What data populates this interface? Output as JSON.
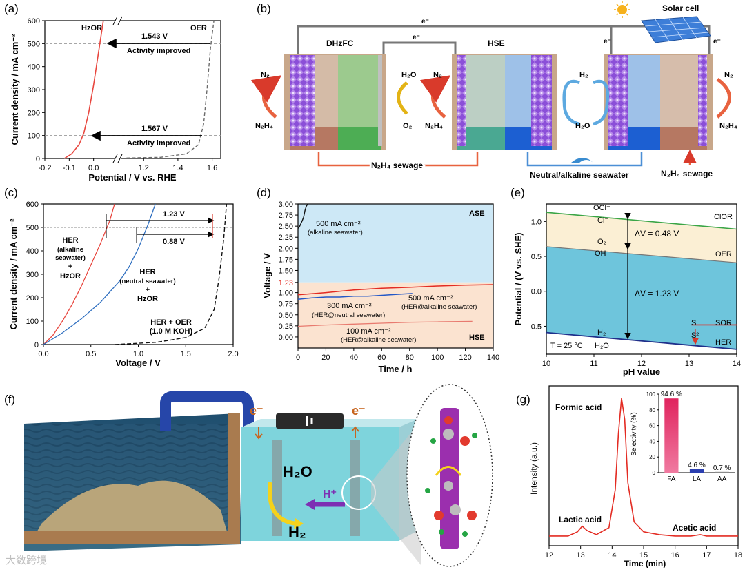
{
  "panel_labels": {
    "a": "(a)",
    "b": "(b)",
    "c": "(c)",
    "d": "(d)",
    "e": "(e)",
    "f": "(f)",
    "g": "(g)"
  },
  "colors": {
    "red": "#e8473f",
    "blue": "#2f6fc0",
    "gray_dash": "#6b6b6b",
    "green": "#3aa546",
    "ase_fill": "#cde8f6",
    "hse_fill": "#fbe3d0",
    "cl_band": "#fbefd4",
    "oer_band": "#6ec5dc",
    "water": "#7ed4dc",
    "molecule_rod": "#9b2fae"
  },
  "chart_data": [
    {
      "id": "a",
      "type": "line",
      "title": "",
      "xlabel": "Potential / V vs. RHE",
      "ylabel": "Current density / mA cm⁻²",
      "xlim_left": [
        -0.2,
        0.1
      ],
      "xlim_right": [
        1.05,
        1.65
      ],
      "ylim": [
        0,
        600
      ],
      "x_ticks": [
        "-0.2",
        "-0.1",
        "0.0",
        "1.2",
        "1.4",
        "1.6"
      ],
      "y_ticks": [
        "0",
        "100",
        "200",
        "300",
        "400",
        "500",
        "600"
      ],
      "series": [
        {
          "name": "HzOR",
          "style": "solid-red",
          "x": [
            -0.12,
            -0.09,
            -0.06,
            -0.04,
            -0.02,
            0.0,
            0.02,
            0.04
          ],
          "y": [
            0,
            20,
            60,
            110,
            200,
            320,
            460,
            600
          ]
        },
        {
          "name": "OER",
          "style": "dashed-gray",
          "x": [
            1.1,
            1.3,
            1.45,
            1.52,
            1.55,
            1.57,
            1.59,
            1.61
          ],
          "y": [
            2,
            5,
            20,
            60,
            150,
            300,
            480,
            600
          ]
        }
      ],
      "reference_lines": [
        100,
        500
      ],
      "annotations": [
        {
          "text": "1.543 V",
          "at": 500
        },
        {
          "text": "Activity improved",
          "at": 500
        },
        {
          "text": "1.567 V",
          "at": 100
        },
        {
          "text": "Activity improved",
          "at": 100
        }
      ]
    },
    {
      "id": "c",
      "type": "line",
      "xlabel": "Voltage / V",
      "ylabel": "Current density / mA cm⁻²",
      "xlim": [
        0,
        2.0
      ],
      "ylim": [
        0,
        600
      ],
      "x_ticks": [
        "0.0",
        "0.5",
        "1.0",
        "1.5",
        "2.0"
      ],
      "y_ticks": [
        "0",
        "100",
        "200",
        "300",
        "400",
        "500",
        "600"
      ],
      "series": [
        {
          "name": "HER (alkaline seawater) + HzOR",
          "style": "solid-red",
          "x": [
            0,
            0.1,
            0.2,
            0.3,
            0.4,
            0.5,
            0.6,
            0.7,
            0.75
          ],
          "y": [
            0,
            40,
            100,
            170,
            250,
            340,
            430,
            530,
            600
          ]
        },
        {
          "name": "HER (neutral seawater) + HzOR",
          "style": "solid-blue",
          "x": [
            0,
            0.2,
            0.4,
            0.6,
            0.8,
            0.9,
            1.0,
            1.1,
            1.18
          ],
          "y": [
            0,
            50,
            110,
            180,
            270,
            330,
            410,
            510,
            600
          ]
        },
        {
          "name": "HER + OER (1.0 M KOH)",
          "style": "dashed-black",
          "x": [
            0.75,
            1.2,
            1.5,
            1.7,
            1.8,
            1.85,
            1.9,
            1.93
          ],
          "y": [
            0,
            10,
            30,
            70,
            150,
            280,
            450,
            600
          ]
        }
      ],
      "reference_lines": [
        500
      ],
      "labels": {
        "red_label": [
          "HER",
          "(alkaline",
          "seawater)",
          "+",
          "HzOR"
        ],
        "blue_label": [
          "HER",
          "(neutral seawater)",
          "+",
          "HzOR"
        ],
        "black_label": [
          "HER + OER",
          "(1.0 M KOH)"
        ],
        "gap1": "1.23 V",
        "gap2": "0.88 V"
      }
    },
    {
      "id": "d",
      "type": "line",
      "xlabel": "Time / h",
      "ylabel": "Voltage / V",
      "xlim": [
        0,
        140
      ],
      "ylim": [
        -0.25,
        3.0
      ],
      "x_ticks": [
        "0",
        "20",
        "40",
        "60",
        "80",
        "100",
        "120",
        "140"
      ],
      "y_ticks": [
        "0.00",
        "0.25",
        "0.50",
        "0.75",
        "1.00",
        "1.23",
        "1.50",
        "1.75",
        "2.00",
        "2.25",
        "2.50",
        "2.75",
        "3.00"
      ],
      "highlight_tick": "1.23",
      "region_labels": [
        "ASE",
        "HSE"
      ],
      "series": [
        {
          "name": "500 mA cm⁻² (alkaline seawater)",
          "style": "black",
          "x": [
            0,
            1,
            2,
            3,
            4,
            5,
            6,
            7
          ],
          "y": [
            2.45,
            2.48,
            2.55,
            2.62,
            2.7,
            2.85,
            2.95,
            3.0
          ]
        },
        {
          "name": "500 mA cm⁻² (HER@alkaline seawater)",
          "style": "red",
          "x": [
            0,
            20,
            40,
            60,
            80,
            100,
            120,
            140
          ],
          "y": [
            0.95,
            1.0,
            1.06,
            1.1,
            1.12,
            1.15,
            1.17,
            1.18
          ]
        },
        {
          "name": "300 mA cm⁻² (HER@neutral seawater)",
          "style": "blue",
          "x": [
            0,
            10,
            20,
            30,
            40,
            50,
            60,
            70,
            82
          ],
          "y": [
            0.85,
            0.88,
            0.9,
            0.9,
            0.92,
            0.92,
            0.94,
            0.96,
            0.98
          ]
        },
        {
          "name": "100 mA cm⁻² (HER@alkaline seawater)",
          "style": "lightred",
          "x": [
            0,
            20,
            40,
            60,
            80,
            100,
            125
          ],
          "y": [
            0.24,
            0.27,
            0.29,
            0.31,
            0.33,
            0.34,
            0.35
          ]
        }
      ],
      "labels": {
        "black_label": [
          "500 mA cm⁻²",
          "(alkaline seawater)"
        ],
        "red_label": [
          "500 mA cm⁻²",
          "(HER@alkaline seawater)"
        ],
        "blue_label": [
          "300 mA cm⁻²",
          "(HER@neutral seawater)"
        ],
        "lightred_label": [
          "100 mA cm⁻²",
          "(HER@alkaline seawater)"
        ]
      }
    },
    {
      "id": "e",
      "type": "line",
      "xlabel": "pH value",
      "ylabel": "Potential / (V vs. SHE)",
      "xlim": [
        10,
        14
      ],
      "ylim": [
        -0.9,
        1.25
      ],
      "x_ticks": [
        "10",
        "11",
        "12",
        "13",
        "14"
      ],
      "y_ticks": [
        "-0.5",
        "0.0",
        "0.5",
        "1.0"
      ],
      "series": [
        {
          "name": "ClOR",
          "style": "green",
          "x": [
            10,
            14
          ],
          "y": [
            1.13,
            0.89
          ]
        },
        {
          "name": "OER",
          "style": "gray",
          "x": [
            10,
            14
          ],
          "y": [
            0.64,
            0.41
          ]
        },
        {
          "name": "HER",
          "style": "navy",
          "x": [
            10,
            14
          ],
          "y": [
            -0.59,
            -0.83
          ]
        },
        {
          "name": "SOR",
          "style": "red",
          "x": [
            13.05,
            14
          ],
          "y": [
            -0.48,
            -0.48
          ]
        }
      ],
      "labels": {
        "ocl": "OCl⁻",
        "cl": "Cl⁻",
        "o2": "O₂",
        "oh": "OH⁻",
        "h2": "H₂",
        "h2o": "H₂O",
        "s": "S",
        "s2": "S²⁻",
        "clor": "ClOR",
        "oer": "OER",
        "sor": "SOR",
        "her": "HER",
        "dv1": "ΔV = 0.48 V",
        "dv2": "ΔV = 1.23 V",
        "temp": "T = 25 °C"
      }
    },
    {
      "id": "g",
      "type": "line",
      "xlabel": "Time (min)",
      "ylabel": "Intensity (a.u.)",
      "xlim": [
        12,
        18
      ],
      "x_ticks": [
        "12",
        "13",
        "14",
        "15",
        "16",
        "17",
        "18"
      ],
      "series": [
        {
          "name": "chromatogram",
          "style": "red",
          "x": [
            12.0,
            12.6,
            12.9,
            13.05,
            13.2,
            13.5,
            13.9,
            14.1,
            14.2,
            14.3,
            14.4,
            14.5,
            14.7,
            15.0,
            15.5,
            16.0,
            16.5,
            16.8,
            17.0,
            17.5,
            18.0
          ],
          "y": [
            0.02,
            0.02,
            0.05,
            0.09,
            0.06,
            0.03,
            0.08,
            0.35,
            0.75,
            1.0,
            0.85,
            0.4,
            0.12,
            0.05,
            0.03,
            0.02,
            0.02,
            0.03,
            0.02,
            0.02,
            0.02
          ]
        }
      ],
      "peak_labels": [
        "Formic acid",
        "Lactic acid",
        "Acetic acid"
      ],
      "inset": {
        "type": "bar",
        "ylabel": "Selectivity (%)",
        "ylim": [
          0,
          100
        ],
        "y_ticks": [
          "0",
          "20",
          "40",
          "60",
          "80",
          "100"
        ],
        "categories": [
          "FA",
          "LA",
          "AA"
        ],
        "values": [
          94.6,
          4.6,
          0.7
        ],
        "value_labels": [
          "94.6 %",
          "4.6 %",
          "0.7 %"
        ],
        "bar_colors": [
          "#e0245e",
          "#2b3fb0",
          "#8a8a8a"
        ]
      }
    }
  ],
  "panel_b": {
    "cell_left": "DHzFC",
    "cell_mid": "HSE",
    "solar": "Solar cell",
    "electron": "e⁻",
    "n2": "N₂",
    "n2h4": "N₂H₄",
    "h2o": "H₂O",
    "o2": "O₂",
    "h2": "H₂",
    "sewage": "N₂H₄ sewage",
    "seawater": "Neutral/alkaline seawater",
    "sewage_right": "N₂H₄ sewage"
  },
  "panel_f": {
    "h2o": "H₂O",
    "h_plus": "H⁺",
    "h2": "H₂",
    "electron": "e⁻"
  },
  "watermark": "大数跨境"
}
